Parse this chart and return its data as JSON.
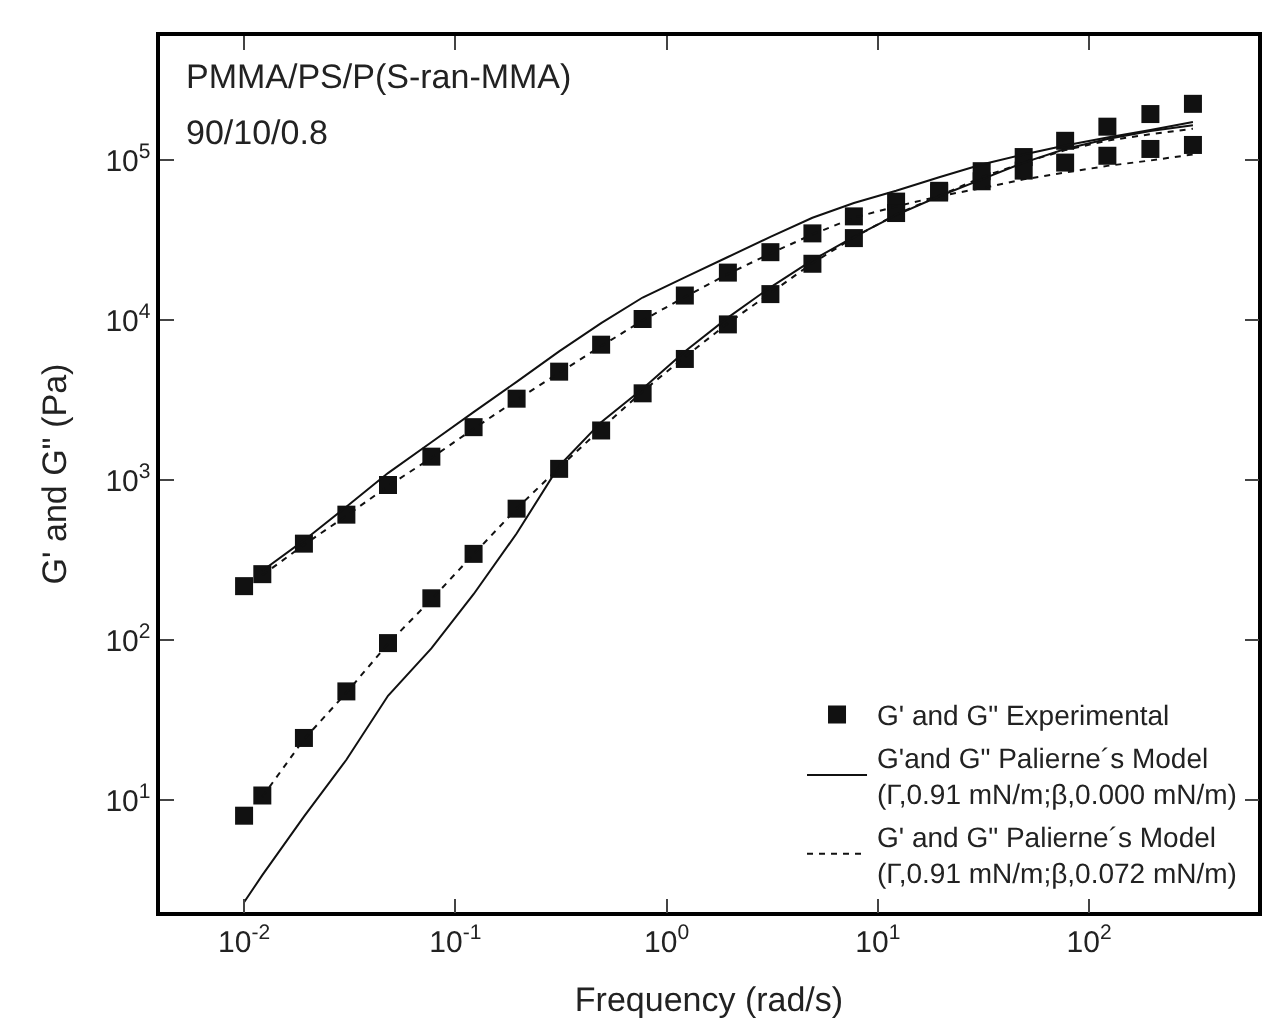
{
  "chart_data": {
    "type": "line",
    "xlabel": "Frequency (rad/s)",
    "ylabel": "G' and G\" (Pa)",
    "annotations": [
      "PMMA/PS/P(S-ran-MMA)",
      "90/10/0.8"
    ],
    "log": "xy",
    "xlim": [
      0.004,
      630
    ],
    "ylim": [
      2,
      600000
    ],
    "xticks": [
      {
        "value": 0.01,
        "label": "10$^{-2}$"
      },
      {
        "value": 0.1,
        "label": "10$^{-1}$"
      },
      {
        "value": 1,
        "label": "10$^{0}$"
      },
      {
        "value": 10,
        "label": "10$^{1}$"
      },
      {
        "value": 100,
        "label": "10$^{2}$"
      }
    ],
    "yticks": [
      {
        "value": 10,
        "label": "10$^{1}$"
      },
      {
        "value": 100,
        "label": "10$^{2}$"
      },
      {
        "value": 1000,
        "label": "10$^{3}$"
      },
      {
        "value": 10000,
        "label": "10$^{4}$"
      },
      {
        "value": 100000,
        "label": "10$^{5}$"
      }
    ],
    "legend": "bottom right",
    "series": [
      {
        "name": "G' and G\" Experimental",
        "type": "scatter",
        "marker": "square",
        "color": "#111111",
        "x": [
          0.01,
          0.0122,
          0.0192,
          0.0305,
          0.048,
          0.077,
          0.122,
          0.195,
          0.31,
          0.49,
          0.77,
          1.22,
          1.95,
          3.1,
          4.9,
          7.7,
          12.2,
          19.5,
          31,
          49,
          77,
          122,
          195,
          310,
          0.01,
          0.0122,
          0.0192,
          0.0305,
          0.048,
          0.077,
          0.122,
          0.195,
          0.31,
          0.49,
          0.77,
          1.22,
          1.95,
          3.1,
          4.9,
          7.7,
          12.2,
          19.5,
          31,
          49,
          77,
          122,
          195,
          310
        ],
        "values": [
          218,
          259,
          402,
          610,
          935,
          1406,
          2150,
          3240,
          4780,
          7050,
          10200,
          14300,
          19900,
          26700,
          35000,
          44700,
          55300,
          64600,
          74100,
          86400,
          97000,
          107000,
          118000,
          125000,
          8.0,
          10.7,
          24.5,
          47.9,
          96,
          183,
          347,
          665,
          1180,
          2050,
          3500,
          5740,
          9440,
          14600,
          22600,
          32700,
          46900,
          63000,
          85700,
          105000,
          132700,
          162600,
          195000,
          226000
        ]
      },
      {
        "name": "G'and G\" Palierne´s Model\n(Γ,0.91 mN/m;β,0.000 mN/m)",
        "line_style": "solid",
        "color": "#111111",
        "x": [
          0.0122,
          0.0192,
          0.0305,
          0.048,
          0.077,
          0.122,
          0.195,
          0.31,
          0.49,
          0.77,
          1.22,
          1.95,
          3.1,
          4.9,
          7.7,
          12.2,
          19.5,
          31,
          49,
          77,
          122,
          195,
          310
        ],
        "values": [
          272,
          421,
          684,
          1110,
          1730,
          2670,
          4130,
          6400,
          9610,
          13900,
          18600,
          24900,
          33300,
          43800,
          54200,
          64600,
          78500,
          94400,
          109000,
          124000,
          139000,
          155000,
          174000
        ]
      },
      {
        "line_style": "solid",
        "color": "#111111",
        "x": [
          0.01,
          0.0122,
          0.0192,
          0.0305,
          0.048,
          0.077,
          0.122,
          0.195,
          0.31,
          0.49,
          0.77,
          1.22,
          1.95,
          3.1,
          4.9,
          7.7,
          12.2,
          19.5,
          31,
          49,
          77,
          122,
          195,
          310
        ],
        "values": [
          2.3,
          3.4,
          7.9,
          17.9,
          45,
          89,
          194,
          465,
          1230,
          2310,
          3740,
          6400,
          10400,
          16100,
          23800,
          33300,
          45500,
          59700,
          76200,
          97000,
          118000,
          136000,
          153000,
          166000
        ]
      },
      {
        "name": "G' and G\" Palierne´s Model\n(Γ,0.91 mN/m;β,0.072 mN/m)",
        "line_style": "dotted",
        "color": "#111111",
        "x": [
          0.0122,
          0.0192,
          0.0305,
          0.048,
          0.077,
          0.122,
          0.195,
          0.31,
          0.49,
          0.77,
          1.22,
          1.95,
          3.1,
          4.9,
          7.7,
          12.2,
          19.5,
          31,
          49,
          77,
          122,
          195,
          310
        ],
        "values": [
          255,
          395,
          600,
          920,
          1380,
          2100,
          3180,
          4700,
          6900,
          10000,
          14000,
          19500,
          26200,
          34500,
          43800,
          51600,
          59700,
          67100,
          76200,
          84000,
          92500,
          100000,
          109000
        ]
      },
      {
        "line_style": "dotted",
        "color": "#111111",
        "x": [
          0.0122,
          0.0192,
          0.0305,
          0.048,
          0.077,
          0.122,
          0.195,
          0.31,
          0.49,
          0.77,
          1.22,
          1.95,
          3.1,
          4.9,
          7.7,
          12.2,
          19.5,
          31,
          49,
          77,
          122,
          195,
          310
        ],
        "values": [
          10.5,
          24,
          47,
          95,
          180,
          345,
          665,
          1200,
          2100,
          3600,
          5900,
          9600,
          14800,
          22800,
          33000,
          46000,
          60000,
          78500,
          97000,
          116000,
          133000,
          146000,
          158000
        ]
      }
    ]
  }
}
